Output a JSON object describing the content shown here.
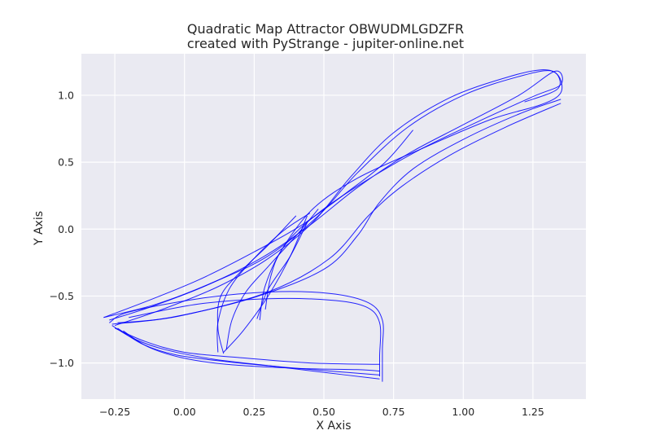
{
  "chart_data": {
    "type": "scatter",
    "title": "Quadratic Map Attractor OBWUDMLGDZFR",
    "subtitle": "created with PyStrange - jupiter-online.net",
    "xlabel": "X Axis",
    "ylabel": "Y Axis",
    "xlim": [
      -0.37,
      1.44
    ],
    "ylim": [
      -1.27,
      1.31
    ],
    "xticks": [
      -0.25,
      0.0,
      0.25,
      0.5,
      0.75,
      1.0,
      1.25
    ],
    "xtick_labels": [
      "−0.25",
      "0.00",
      "0.25",
      "0.50",
      "0.75",
      "1.00",
      "1.25"
    ],
    "yticks": [
      -1.0,
      -0.5,
      0.0,
      0.5,
      1.0
    ],
    "ytick_labels": [
      "−1.0",
      "−0.5",
      "0.0",
      "0.5",
      "1.0"
    ],
    "grid": true,
    "series": [
      {
        "color": "#0000ff",
        "curves": [
          [
            [
              -0.29,
              -0.66
            ],
            [
              -0.15,
              -0.55
            ],
            [
              0.05,
              -0.38
            ],
            [
              0.25,
              -0.17
            ],
            [
              0.42,
              0.03
            ],
            [
              0.58,
              0.27
            ],
            [
              0.72,
              0.5
            ],
            [
              0.82,
              0.74
            ]
          ],
          [
            [
              -0.27,
              -0.68
            ],
            [
              -0.12,
              -0.58
            ],
            [
              0.08,
              -0.42
            ],
            [
              0.28,
              -0.21
            ],
            [
              0.45,
              0.03
            ],
            [
              0.62,
              0.31
            ],
            [
              0.8,
              0.56
            ],
            [
              1.0,
              0.78
            ],
            [
              1.2,
              1.0
            ],
            [
              1.33,
              1.18
            ],
            [
              1.35,
              1.08
            ],
            [
              1.25,
              0.99
            ],
            [
              1.05,
              0.8
            ],
            [
              0.85,
              0.6
            ],
            [
              0.65,
              0.36
            ],
            [
              0.48,
              0.12
            ],
            [
              0.36,
              -0.12
            ],
            [
              0.29,
              -0.42
            ],
            [
              0.27,
              -0.68
            ]
          ],
          [
            [
              -0.25,
              -0.72
            ],
            [
              -0.08,
              -0.6
            ],
            [
              0.12,
              -0.43
            ],
            [
              0.3,
              -0.22
            ],
            [
              0.46,
              0.05
            ],
            [
              0.6,
              0.4
            ],
            [
              0.75,
              0.72
            ],
            [
              0.95,
              0.98
            ],
            [
              1.15,
              1.13
            ],
            [
              1.28,
              1.19
            ],
            [
              1.34,
              1.15
            ],
            [
              1.35,
              1.02
            ],
            [
              1.28,
              0.93
            ],
            [
              1.1,
              0.82
            ],
            [
              0.85,
              0.6
            ],
            [
              0.62,
              0.38
            ],
            [
              0.46,
              0.15
            ],
            [
              0.35,
              -0.15
            ],
            [
              0.31,
              -0.35
            ],
            [
              0.29,
              -0.6
            ]
          ],
          [
            [
              -0.29,
              -0.66
            ],
            [
              -0.1,
              -0.56
            ],
            [
              0.1,
              -0.4
            ],
            [
              0.3,
              -0.2
            ],
            [
              0.48,
              0.1
            ],
            [
              0.62,
              0.42
            ],
            [
              0.8,
              0.76
            ],
            [
              1.0,
              1.0
            ],
            [
              1.2,
              1.14
            ],
            [
              1.32,
              1.18
            ],
            [
              1.34,
              1.05
            ],
            [
              1.22,
              0.95
            ]
          ],
          [
            [
              -0.24,
              -0.7
            ],
            [
              -0.05,
              -0.66
            ],
            [
              0.25,
              -0.51
            ],
            [
              0.5,
              -0.3
            ],
            [
              0.62,
              -0.05
            ],
            [
              0.7,
              0.2
            ],
            [
              0.82,
              0.45
            ],
            [
              1.0,
              0.67
            ],
            [
              1.2,
              0.86
            ],
            [
              1.35,
              0.97
            ]
          ],
          [
            [
              -0.26,
              -0.71
            ],
            [
              -0.02,
              -0.65
            ],
            [
              0.3,
              -0.47
            ],
            [
              0.52,
              -0.22
            ],
            [
              0.66,
              0.1
            ],
            [
              0.78,
              0.32
            ],
            [
              0.95,
              0.55
            ],
            [
              1.15,
              0.76
            ],
            [
              1.35,
              0.94
            ]
          ],
          [
            [
              0.14,
              -0.93
            ],
            [
              0.12,
              -0.74
            ],
            [
              0.13,
              -0.5
            ],
            [
              0.21,
              -0.3
            ],
            [
              0.3,
              -0.12
            ],
            [
              0.4,
              0.1
            ]
          ],
          [
            [
              0.12,
              -0.92
            ],
            [
              0.12,
              -0.7
            ],
            [
              0.16,
              -0.45
            ],
            [
              0.24,
              -0.24
            ],
            [
              0.35,
              -0.02
            ],
            [
              0.45,
              0.12
            ]
          ],
          [
            [
              0.15,
              -0.9
            ],
            [
              0.17,
              -0.68
            ],
            [
              0.22,
              -0.47
            ],
            [
              0.3,
              -0.28
            ],
            [
              0.4,
              -0.05
            ],
            [
              0.48,
              0.15
            ]
          ],
          [
            [
              0.14,
              -0.92
            ],
            [
              0.21,
              -0.76
            ],
            [
              0.3,
              -0.5
            ],
            [
              0.38,
              -0.2
            ],
            [
              0.44,
              0.1
            ]
          ],
          [
            [
              0.26,
              -0.67
            ],
            [
              0.3,
              -0.45
            ],
            [
              0.38,
              -0.2
            ],
            [
              0.44,
              0.05
            ]
          ],
          [
            [
              -0.27,
              -0.7
            ],
            [
              -0.2,
              -0.62
            ],
            [
              0.05,
              -0.52
            ],
            [
              0.3,
              -0.47
            ],
            [
              0.52,
              -0.48
            ],
            [
              0.66,
              -0.55
            ],
            [
              0.71,
              -0.68
            ],
            [
              0.71,
              -0.9
            ],
            [
              0.71,
              -1.14
            ]
          ],
          [
            [
              -0.26,
              -0.72
            ],
            [
              -0.18,
              -0.82
            ],
            [
              -0.07,
              -0.9
            ],
            [
              0.1,
              -0.97
            ],
            [
              0.3,
              -1.02
            ],
            [
              0.5,
              -1.07
            ],
            [
              0.7,
              -1.12
            ]
          ],
          [
            [
              -0.24,
              -0.74
            ],
            [
              -0.15,
              -0.86
            ],
            [
              -0.03,
              -0.94
            ],
            [
              0.15,
              -0.99
            ],
            [
              0.35,
              -1.03
            ],
            [
              0.52,
              -1.06
            ],
            [
              0.7,
              -1.09
            ]
          ],
          [
            [
              -0.22,
              -0.76
            ],
            [
              -0.13,
              -0.88
            ],
            [
              -0.01,
              -0.96
            ],
            [
              0.15,
              -1.01
            ],
            [
              0.4,
              -1.04
            ],
            [
              0.62,
              -1.05
            ],
            [
              0.7,
              -1.06
            ]
          ],
          [
            [
              -0.25,
              -0.74
            ],
            [
              -0.14,
              -0.84
            ],
            [
              0.0,
              -0.92
            ],
            [
              0.2,
              -0.96
            ],
            [
              0.45,
              -1.0
            ],
            [
              0.7,
              -1.01
            ]
          ],
          [
            [
              -0.2,
              -0.66
            ],
            [
              0.05,
              -0.56
            ],
            [
              0.3,
              -0.52
            ],
            [
              0.52,
              -0.53
            ],
            [
              0.65,
              -0.58
            ],
            [
              0.7,
              -0.7
            ],
            [
              0.7,
              -0.95
            ],
            [
              0.7,
              -1.1
            ]
          ]
        ]
      }
    ]
  }
}
